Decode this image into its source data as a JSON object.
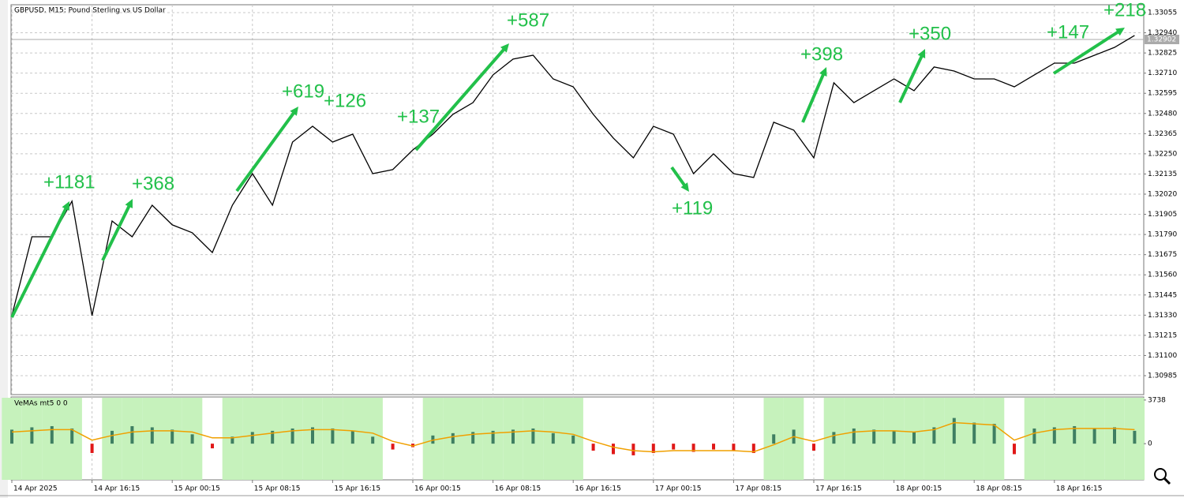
{
  "chart_data": [
    {
      "type": "line",
      "title": "GBPUSD, M15:  Pound Sterling vs US Dollar",
      "categories": [
        "14 Apr 2025",
        null,
        null,
        null,
        "14 Apr 16:15",
        null,
        null,
        null,
        "15 Apr 00:15",
        null,
        null,
        null,
        "15 Apr 08:15",
        null,
        null,
        null,
        "15 Apr 16:15",
        null,
        null,
        null,
        "16 Apr 00:15",
        null,
        null,
        null,
        "16 Apr 08:15",
        null,
        null,
        null,
        "16 Apr 16:15",
        null,
        null,
        null,
        "17 Apr 00:15",
        null,
        null,
        null,
        "17 Apr 08:15",
        null,
        null,
        null,
        "17 Apr 16:15",
        null,
        null,
        null,
        "18 Apr 00:15",
        null,
        null,
        null,
        "18 Apr 08:15",
        null,
        null,
        null,
        "18 Apr 16:15",
        null,
        null,
        null,
        null
      ],
      "series": [
        {
          "color": "#000000",
          "values": [
            1.31327,
            1.31777,
            1.31777,
            1.3198,
            1.31327,
            1.31867,
            1.31777,
            1.31957,
            1.31845,
            1.318,
            1.31687,
            1.31957,
            1.32137,
            1.31957,
            1.32317,
            1.32407,
            1.32317,
            1.32362,
            1.32137,
            1.3216,
            1.32272,
            1.32362,
            1.32475,
            1.32542,
            1.327,
            1.3279,
            1.32812,
            1.32677,
            1.32632,
            1.32475,
            1.3234,
            1.32227,
            1.32407,
            1.32362,
            1.32137,
            1.3225,
            1.32137,
            1.32115,
            1.3243,
            1.32385,
            1.32227,
            1.32655,
            1.32542,
            1.3261,
            1.32677,
            1.3261,
            1.32745,
            1.32722,
            1.32677,
            1.32677,
            1.32632,
            1.327,
            1.32767,
            1.32767,
            1.32812,
            1.32857,
            1.32925
          ]
        }
      ],
      "current_price": 1.32902,
      "ylim": [
        1.30877,
        1.331
      ],
      "yticks": [
        1.33055,
        {
          "value": 1.3294,
          "label": "1.32940"
        },
        1.32825,
        {
          "value": 1.3271,
          "label": "1.32710"
        },
        1.32595,
        {
          "value": 1.3248,
          "label": "1.32480"
        },
        1.32365,
        {
          "value": 1.3225,
          "label": "1.32250"
        },
        1.32135,
        {
          "value": 1.3202,
          "label": "1.32020"
        },
        1.31905,
        {
          "value": 1.3179,
          "label": "1.31790"
        },
        1.31675,
        {
          "value": 1.3156,
          "label": "1.31560"
        },
        1.31445,
        {
          "value": 1.3133,
          "label": "1.31330"
        },
        1.31215,
        {
          "value": 1.311,
          "label": "1.31100"
        },
        1.30985
      ],
      "grid": true,
      "annotations": [
        "+1181",
        "+368",
        "+619",
        "+126",
        "+137",
        "+587",
        "+119",
        "+398",
        "+350",
        "+147",
        "+218"
      ]
    },
    {
      "type": "bar",
      "title": "VeMAs mt5 0 0",
      "series": [
        {
          "color": "#3f7f62",
          "negative_color": "#e01818",
          "shade": "#c6f2bc",
          "values": [
            1200,
            1400,
            1500,
            1300,
            -800,
            1100,
            1500,
            1400,
            1200,
            800,
            -400,
            600,
            1000,
            1100,
            1300,
            1400,
            1300,
            1100,
            600,
            -500,
            -300,
            700,
            900,
            1000,
            1100,
            1200,
            1300,
            900,
            700,
            -600,
            -900,
            -1000,
            -800,
            -500,
            -700,
            -500,
            -600,
            -800,
            800,
            1200,
            -600,
            1000,
            1300,
            1200,
            1100,
            1000,
            1400,
            2200,
            1800,
            1700,
            -900,
            1300,
            1400,
            1500,
            1300,
            1400,
            1100
          ]
        },
        {
          "color": "#f0a000",
          "values": [
            1000,
            1100,
            1200,
            1200,
            300,
            700,
            1000,
            1100,
            1100,
            1000,
            500,
            500,
            700,
            900,
            1100,
            1200,
            1200,
            1100,
            900,
            200,
            -200,
            300,
            600,
            800,
            900,
            1000,
            1100,
            1000,
            800,
            200,
            -300,
            -600,
            -700,
            -600,
            -600,
            -600,
            -600,
            -700,
            -100,
            600,
            200,
            700,
            1000,
            1100,
            1100,
            1000,
            1200,
            1800,
            1700,
            1600,
            300,
            900,
            1200,
            1300,
            1300,
            1300,
            1200
          ]
        }
      ],
      "ylim": [
        -3100,
        4000
      ],
      "yticks": [
        3738,
        0
      ]
    }
  ]
}
